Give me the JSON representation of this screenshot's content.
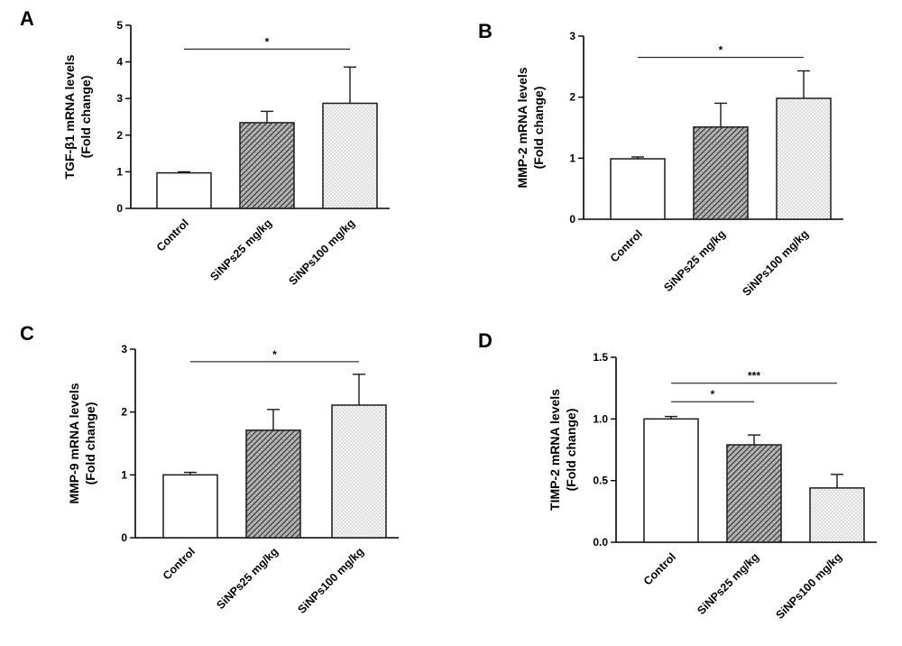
{
  "chart_data": [
    {
      "type": "bar",
      "panel": "A",
      "ylabel_line1": "TGF-β1 mRNA levels",
      "ylabel_line2": "(Fold change)",
      "categories": [
        "Control",
        "SiNPs25 mg/kg",
        "SiNPs100 mg/kg"
      ],
      "values": [
        0.97,
        2.34,
        2.87
      ],
      "errors": [
        0.03,
        0.31,
        0.99
      ],
      "ylim": [
        0,
        5
      ],
      "yticks": [
        "0",
        "1",
        "2",
        "3",
        "4",
        "5"
      ],
      "significance": [
        {
          "from": 0,
          "to": 2,
          "y": 4.35,
          "label": "*"
        }
      ]
    },
    {
      "type": "bar",
      "panel": "B",
      "ylabel_line1": "MMP-2 mRNA levels",
      "ylabel_line2": "(Fold change)",
      "categories": [
        "Control",
        "SiNPs25 mg/kg",
        "SiNPs100 mg/kg"
      ],
      "values": [
        0.99,
        1.51,
        1.98
      ],
      "errors": [
        0.03,
        0.39,
        0.45
      ],
      "ylim": [
        0,
        3
      ],
      "yticks": [
        "0",
        "1",
        "2",
        "3"
      ],
      "significance": [
        {
          "from": 0,
          "to": 2,
          "y": 2.65,
          "label": "*"
        }
      ]
    },
    {
      "type": "bar",
      "panel": "C",
      "ylabel_line1": "MMP-9 mRNA levels",
      "ylabel_line2": "(Fold change)",
      "categories": [
        "Control",
        "SiNPs25 mg/kg",
        "SiNPs100 mg/kg"
      ],
      "values": [
        1.0,
        1.71,
        2.11
      ],
      "errors": [
        0.04,
        0.33,
        0.49
      ],
      "ylim": [
        0,
        3
      ],
      "yticks": [
        "0",
        "1",
        "2",
        "3"
      ],
      "significance": [
        {
          "from": 0,
          "to": 2,
          "y": 2.8,
          "label": "*"
        }
      ]
    },
    {
      "type": "bar",
      "panel": "D",
      "ylabel_line1": "TIMP-2 mRNA levels",
      "ylabel_line2": "(Fold change)",
      "categories": [
        "Control",
        "SiNPs25 mg/kg",
        "SiNPs100 mg/kg"
      ],
      "values": [
        1.0,
        0.79,
        0.44
      ],
      "errors": [
        0.02,
        0.08,
        0.11
      ],
      "ylim": [
        0,
        1.5
      ],
      "yticks": [
        "0.0",
        "0.5",
        "1.0",
        "1.5"
      ],
      "significance": [
        {
          "from": 0,
          "to": 1,
          "y": 1.14,
          "label": "*"
        },
        {
          "from": 0,
          "to": 2,
          "y": 1.29,
          "label": "***"
        }
      ]
    }
  ],
  "styles": {
    "bar_stroke": "#1a1a1a",
    "fills": [
      "#ffffff",
      "hatch-dark",
      "dots-light"
    ]
  }
}
